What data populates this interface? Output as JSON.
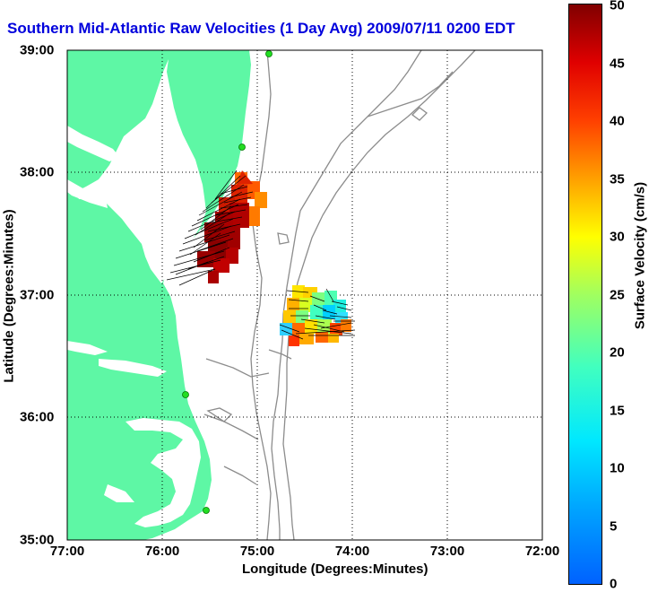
{
  "title": "Southern Mid-Atlantic Raw Velocities (1 Day Avg) 2009/07/11 0200 EDT",
  "axes": {
    "xlabel": "Longitude (Degrees:Minutes)",
    "ylabel": "Latitude (Degrees:Minutes)",
    "x_ticks": [
      "77:00",
      "76:00",
      "75:00",
      "74:00",
      "73:00",
      "72:00"
    ],
    "y_ticks": [
      "39:00",
      "38:00",
      "37:00",
      "36:00",
      "35:00"
    ]
  },
  "colorbar": {
    "label": "Surface Velocity (cm/s)",
    "ticks": [
      "50",
      "45",
      "40",
      "35",
      "30",
      "25",
      "20",
      "15",
      "10",
      "5",
      "0"
    ],
    "min": 0,
    "max": 50
  },
  "colors": {
    "land": "#5ef7a5",
    "water": "#ffffff",
    "bathymetry": "#8c8c8c",
    "station": "#22dd22",
    "title": "#0000dd"
  }
}
